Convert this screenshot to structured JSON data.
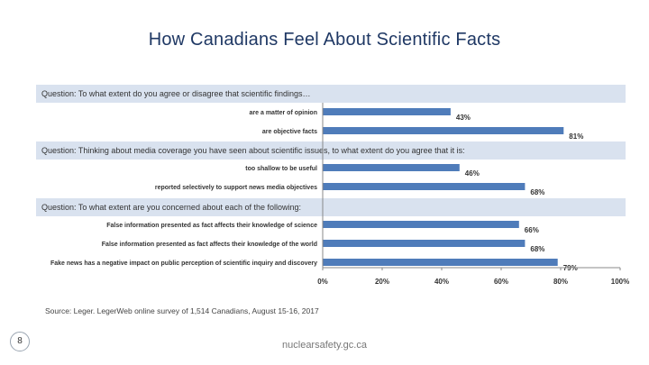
{
  "title": "How Canadians Feel About Scientific Facts",
  "questions": [
    "Question: To what extent do you agree or disagree that scientific findings…",
    "Question: Thinking about media coverage you have seen about scientific issues, to what extent do you agree that it is:",
    "Question: To what extent are you concerned about each of the following:"
  ],
  "source": "Source: Leger. LegerWeb online survey of 1,514 Canadians, August 15-16, 2017",
  "page_number": "8",
  "footer": "nuclearsafety.gc.ca",
  "colors": {
    "bar": "#4f7cba",
    "band": "#d9e2ef",
    "title": "#1f3864"
  },
  "chart_data": {
    "type": "bar",
    "orientation": "horizontal",
    "categories": [
      "are a matter of opinion",
      "are objective facts",
      "too shallow to be useful",
      "reported selectively to support news media objectives",
      "False information presented as fact affects their knowledge of science",
      "False information presented as fact affects their knowledge of the world",
      "Fake news has a negative impact on public perception of scientific inquiry and discovery"
    ],
    "values": [
      43,
      81,
      46,
      68,
      66,
      68,
      79
    ],
    "value_labels": [
      "43%",
      "81%",
      "46%",
      "68%",
      "66%",
      "68%",
      "79%"
    ],
    "groups": [
      [
        0,
        1
      ],
      [
        2,
        3
      ],
      [
        4,
        5,
        6
      ]
    ],
    "xlim": [
      0,
      100
    ],
    "xticks": [
      "0%",
      "20%",
      "40%",
      "60%",
      "80%",
      "100%"
    ],
    "grid": false,
    "legend": "none"
  }
}
